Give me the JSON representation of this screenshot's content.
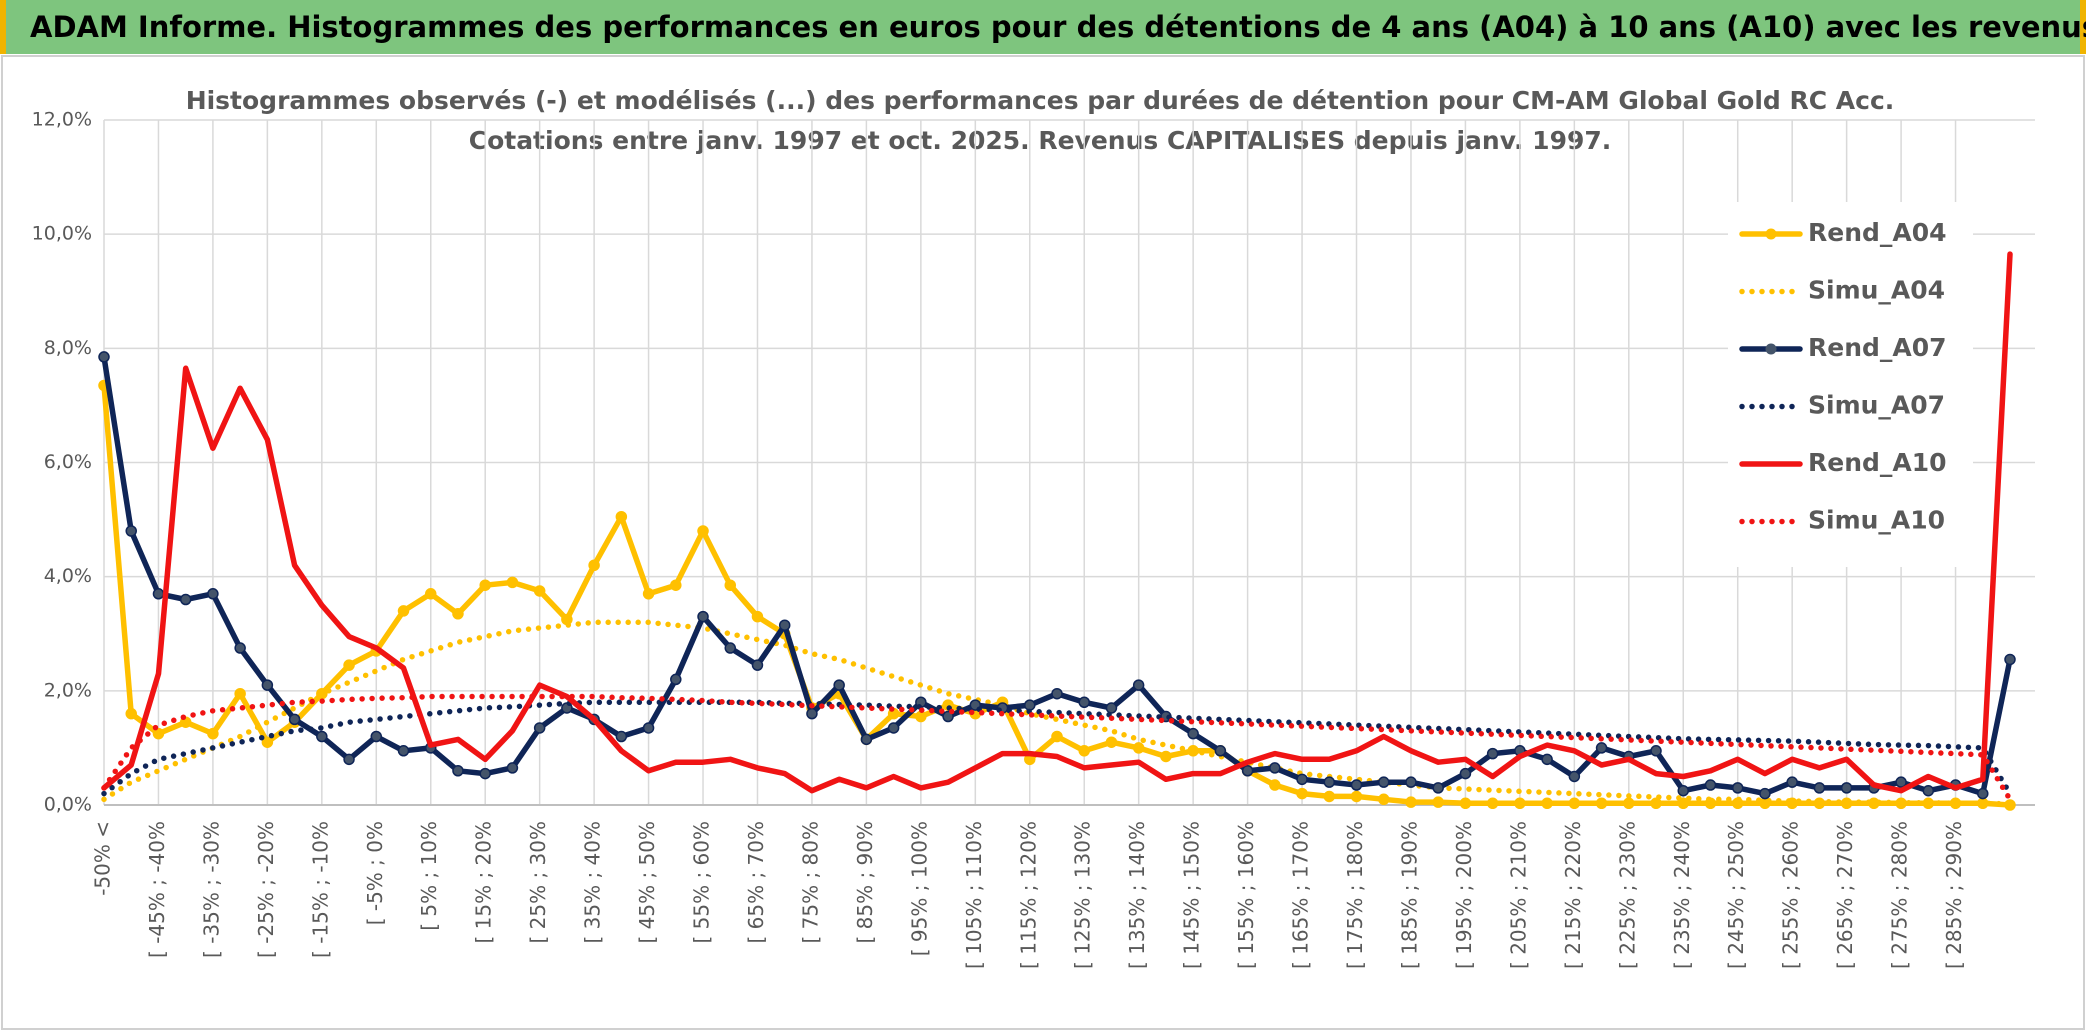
{
  "header": {
    "title": "ADAM Informe. Histogrammes des performances en euros pour des détentions de 4 ans (A04) à 10 ans (A10) avec les revenus connus capitalisés"
  },
  "chart_data": {
    "type": "line",
    "title": "Histogrammes observés (-) et modélisés (...) des performances par durées de détention pour CM-AM Global Gold RC Acc.",
    "subtitle": "Cotations entre janv. 1997 et oct. 2025. Revenus CAPITALISES depuis janv. 1997.",
    "categories": [
      "-50% <",
      null,
      "[ -45% ; -40%",
      null,
      "[ -35% ; -30%",
      null,
      "[ -25% ; -20%",
      null,
      "[ -15% ; -10%",
      null,
      "[ -5% ; 0%",
      null,
      "[ 5% ; 10%",
      null,
      "[ 15% ; 20%",
      null,
      "[ 25% ; 30%",
      null,
      "[ 35% ; 40%",
      null,
      "[ 45% ; 50%",
      null,
      "[ 55% ; 60%",
      null,
      "[ 65% ; 70%",
      null,
      "[ 75% ; 80%",
      null,
      "[ 85% ; 90%",
      null,
      "[ 95% ; 100%",
      null,
      "[ 105% ; 110%",
      null,
      "[ 115% ; 120%",
      null,
      "[ 125% ; 130%",
      null,
      "[ 135% ; 140%",
      null,
      "[ 145% ; 150%",
      null,
      "[ 155% ; 160%",
      null,
      "[ 165% ; 170%",
      null,
      "[ 175% ; 180%",
      null,
      "[ 185% ; 190%",
      null,
      "[ 195% ; 200%",
      null,
      "[ 205% ; 210%",
      null,
      "[ 215% ; 220%",
      null,
      "[ 225% ; 230%",
      null,
      "[ 235% ; 240%",
      null,
      "[ 245% ; 250%",
      null,
      "[ 255% ; 260%",
      null,
      "[ 265% ; 270%",
      null,
      "[ 275% ; 280%",
      null,
      "[ 285% ; 290%",
      null,
      null
    ],
    "ylim": [
      0,
      12
    ],
    "yticks": [
      {
        "value": 0,
        "label": "0,0%"
      },
      {
        "value": 2,
        "label": "2,0%"
      },
      {
        "value": 4,
        "label": "4,0%"
      },
      {
        "value": 6,
        "label": "6,0%"
      },
      {
        "value": 8,
        "label": "8,0%"
      },
      {
        "value": 10,
        "label": "10,0%"
      },
      {
        "value": 12,
        "label": "12,0%"
      }
    ],
    "grid": true,
    "legend": "right",
    "series": [
      {
        "name": "Rend_A04",
        "color": "#ffc000",
        "style": "solid",
        "marker": true,
        "values": [
          7.35,
          1.6,
          1.25,
          1.45,
          1.25,
          1.95,
          1.1,
          1.45,
          1.95,
          2.45,
          2.7,
          3.4,
          3.7,
          3.35,
          3.85,
          3.9,
          3.75,
          3.25,
          4.2,
          5.05,
          3.7,
          3.85,
          4.8,
          3.85,
          3.3,
          3.0,
          1.7,
          1.95,
          1.15,
          1.6,
          1.55,
          1.75,
          1.6,
          1.8,
          0.8,
          1.2,
          0.95,
          1.1,
          1.0,
          0.85,
          0.95,
          0.95,
          0.6,
          0.35,
          0.2,
          0.15,
          0.15,
          0.1,
          0.05,
          0.05,
          0.03,
          0.03,
          0.03,
          0.03,
          0.03,
          0.03,
          0.03,
          0.03,
          0.03,
          0.03,
          0.03,
          0.03,
          0.03,
          0.03,
          0.03,
          0.03,
          0.03,
          0.03,
          0.03,
          0.03,
          0.0
        ]
      },
      {
        "name": "Simu_A04",
        "color": "#ffc000",
        "style": "dotted",
        "marker": false,
        "values": [
          0.1,
          0.4,
          0.6,
          0.8,
          1.0,
          1.2,
          1.45,
          1.7,
          1.95,
          2.15,
          2.35,
          2.55,
          2.7,
          2.85,
          2.95,
          3.05,
          3.1,
          3.15,
          3.2,
          3.2,
          3.2,
          3.15,
          3.1,
          3.0,
          2.9,
          2.8,
          2.65,
          2.55,
          2.4,
          2.25,
          2.1,
          1.95,
          1.85,
          1.75,
          1.6,
          1.5,
          1.4,
          1.3,
          1.15,
          1.05,
          0.95,
          0.85,
          0.75,
          0.65,
          0.55,
          0.5,
          0.45,
          0.4,
          0.35,
          0.3,
          0.28,
          0.26,
          0.24,
          0.22,
          0.2,
          0.18,
          0.16,
          0.14,
          0.12,
          0.1,
          0.1,
          0.08,
          0.07,
          0.06,
          0.05,
          0.05,
          0.04,
          0.04,
          0.03,
          0.03,
          0.02
        ]
      },
      {
        "name": "Rend_A07",
        "color": "#0f2557",
        "style": "solid",
        "marker": true,
        "values": [
          7.85,
          4.8,
          3.7,
          3.6,
          3.7,
          2.75,
          2.1,
          1.5,
          1.2,
          0.8,
          1.2,
          0.95,
          1.0,
          0.6,
          0.55,
          0.65,
          1.35,
          1.7,
          1.5,
          1.2,
          1.35,
          2.2,
          3.3,
          2.75,
          2.45,
          3.15,
          1.6,
          2.1,
          1.15,
          1.35,
          1.8,
          1.55,
          1.75,
          1.7,
          1.75,
          1.95,
          1.8,
          1.7,
          2.1,
          1.55,
          1.25,
          0.95,
          0.6,
          0.65,
          0.45,
          0.4,
          0.35,
          0.4,
          0.4,
          0.3,
          0.55,
          0.9,
          0.95,
          0.8,
          0.5,
          1.0,
          0.85,
          0.95,
          0.25,
          0.35,
          0.3,
          0.2,
          0.4,
          0.3,
          0.3,
          0.3,
          0.4,
          0.25,
          0.35,
          0.2,
          2.55
        ]
      },
      {
        "name": "Simu_A07",
        "color": "#0f2557",
        "style": "dotted",
        "marker": false,
        "values": [
          0.2,
          0.55,
          0.8,
          0.9,
          1.0,
          1.1,
          1.2,
          1.3,
          1.35,
          1.45,
          1.5,
          1.55,
          1.6,
          1.65,
          1.7,
          1.72,
          1.75,
          1.78,
          1.8,
          1.8,
          1.8,
          1.8,
          1.8,
          1.8,
          1.8,
          1.78,
          1.78,
          1.76,
          1.75,
          1.73,
          1.72,
          1.7,
          1.68,
          1.66,
          1.64,
          1.62,
          1.6,
          1.58,
          1.56,
          1.54,
          1.52,
          1.5,
          1.48,
          1.46,
          1.44,
          1.42,
          1.4,
          1.38,
          1.36,
          1.34,
          1.32,
          1.3,
          1.28,
          1.26,
          1.24,
          1.22,
          1.2,
          1.18,
          1.16,
          1.15,
          1.14,
          1.13,
          1.12,
          1.1,
          1.08,
          1.06,
          1.05,
          1.04,
          1.02,
          1.0,
          0.2
        ]
      },
      {
        "name": "Rend_A10",
        "color": "#f01414",
        "style": "solid",
        "marker": false,
        "values": [
          0.3,
          0.7,
          2.3,
          7.65,
          6.25,
          7.3,
          6.4,
          4.2,
          3.5,
          2.95,
          2.75,
          2.4,
          1.05,
          1.15,
          0.8,
          1.3,
          2.1,
          1.9,
          1.5,
          0.95,
          0.6,
          0.75,
          0.75,
          0.8,
          0.65,
          0.55,
          0.25,
          0.45,
          0.3,
          0.5,
          0.3,
          0.4,
          0.65,
          0.9,
          0.9,
          0.85,
          0.65,
          0.7,
          0.75,
          0.45,
          0.55,
          0.55,
          0.75,
          0.9,
          0.8,
          0.8,
          0.95,
          1.2,
          0.95,
          0.75,
          0.8,
          0.5,
          0.85,
          1.05,
          0.95,
          0.7,
          0.8,
          0.55,
          0.5,
          0.6,
          0.8,
          0.55,
          0.8,
          0.65,
          0.8,
          0.35,
          0.25,
          0.5,
          0.3,
          0.45,
          9.65
        ]
      },
      {
        "name": "Simu_A10",
        "color": "#f01414",
        "style": "dotted",
        "marker": false,
        "values": [
          0.3,
          1.0,
          1.4,
          1.55,
          1.65,
          1.7,
          1.75,
          1.8,
          1.82,
          1.85,
          1.87,
          1.88,
          1.9,
          1.9,
          1.9,
          1.9,
          1.9,
          1.9,
          1.9,
          1.88,
          1.87,
          1.85,
          1.83,
          1.8,
          1.78,
          1.76,
          1.74,
          1.72,
          1.7,
          1.68,
          1.66,
          1.64,
          1.62,
          1.6,
          1.58,
          1.56,
          1.54,
          1.52,
          1.5,
          1.48,
          1.46,
          1.44,
          1.42,
          1.4,
          1.38,
          1.36,
          1.34,
          1.32,
          1.3,
          1.28,
          1.26,
          1.24,
          1.22,
          1.2,
          1.18,
          1.16,
          1.14,
          1.12,
          1.1,
          1.08,
          1.06,
          1.04,
          1.02,
          1.0,
          0.98,
          0.96,
          0.94,
          0.92,
          0.9,
          0.88,
          0.1
        ]
      }
    ]
  }
}
